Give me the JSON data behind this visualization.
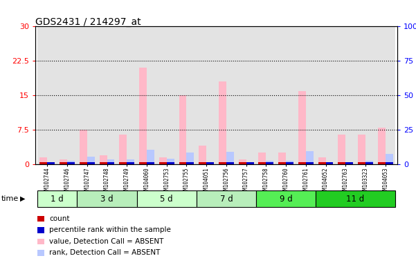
{
  "title": "GDS2431 / 214297_at",
  "samples": [
    "GSM102744",
    "GSM102746",
    "GSM102747",
    "GSM102748",
    "GSM102749",
    "GSM104060",
    "GSM102753",
    "GSM102755",
    "GSM104051",
    "GSM102756",
    "GSM102757",
    "GSM102758",
    "GSM102760",
    "GSM102761",
    "GSM104052",
    "GSM102763",
    "GSM103323",
    "GSM104053"
  ],
  "time_groups": [
    {
      "label": "1 d",
      "start": 0,
      "end": 2,
      "color": "#ccffcc"
    },
    {
      "label": "3 d",
      "start": 2,
      "end": 5,
      "color": "#bbeecc"
    },
    {
      "label": "5 d",
      "start": 5,
      "end": 8,
      "color": "#ccffcc"
    },
    {
      "label": "7 d",
      "start": 8,
      "end": 11,
      "color": "#bbeecc"
    },
    {
      "label": "9 d",
      "start": 11,
      "end": 14,
      "color": "#44ee44"
    },
    {
      "label": "11 d",
      "start": 14,
      "end": 18,
      "color": "#22dd22"
    }
  ],
  "count_values": [
    1.5,
    1.0,
    7.5,
    2.0,
    6.5,
    21.0,
    1.5,
    15.0,
    4.0,
    18.0,
    1.0,
    2.5,
    2.5,
    16.0,
    1.5,
    6.5,
    6.5,
    8.0
  ],
  "percentile_values": [
    1.0,
    2.5,
    5.5,
    3.5,
    3.5,
    10.5,
    4.0,
    8.5,
    1.5,
    9.0,
    1.5,
    2.5,
    2.5,
    9.5,
    1.0,
    1.5,
    2.5,
    7.5
  ],
  "ylim_left": [
    0,
    30
  ],
  "ylim_right": [
    0,
    100
  ],
  "yticks_left": [
    0,
    7.5,
    15,
    22.5,
    30
  ],
  "yticks_right": [
    0,
    25,
    50,
    75,
    100
  ],
  "bar_width": 0.38,
  "absent_bar_color": "#ffb8c8",
  "absent_rank_color": "#b8c8ff",
  "count_color": "#cc0000",
  "percentile_color": "#0000cc",
  "col_bg_color": "#cccccc",
  "plot_bg": "#ffffff"
}
